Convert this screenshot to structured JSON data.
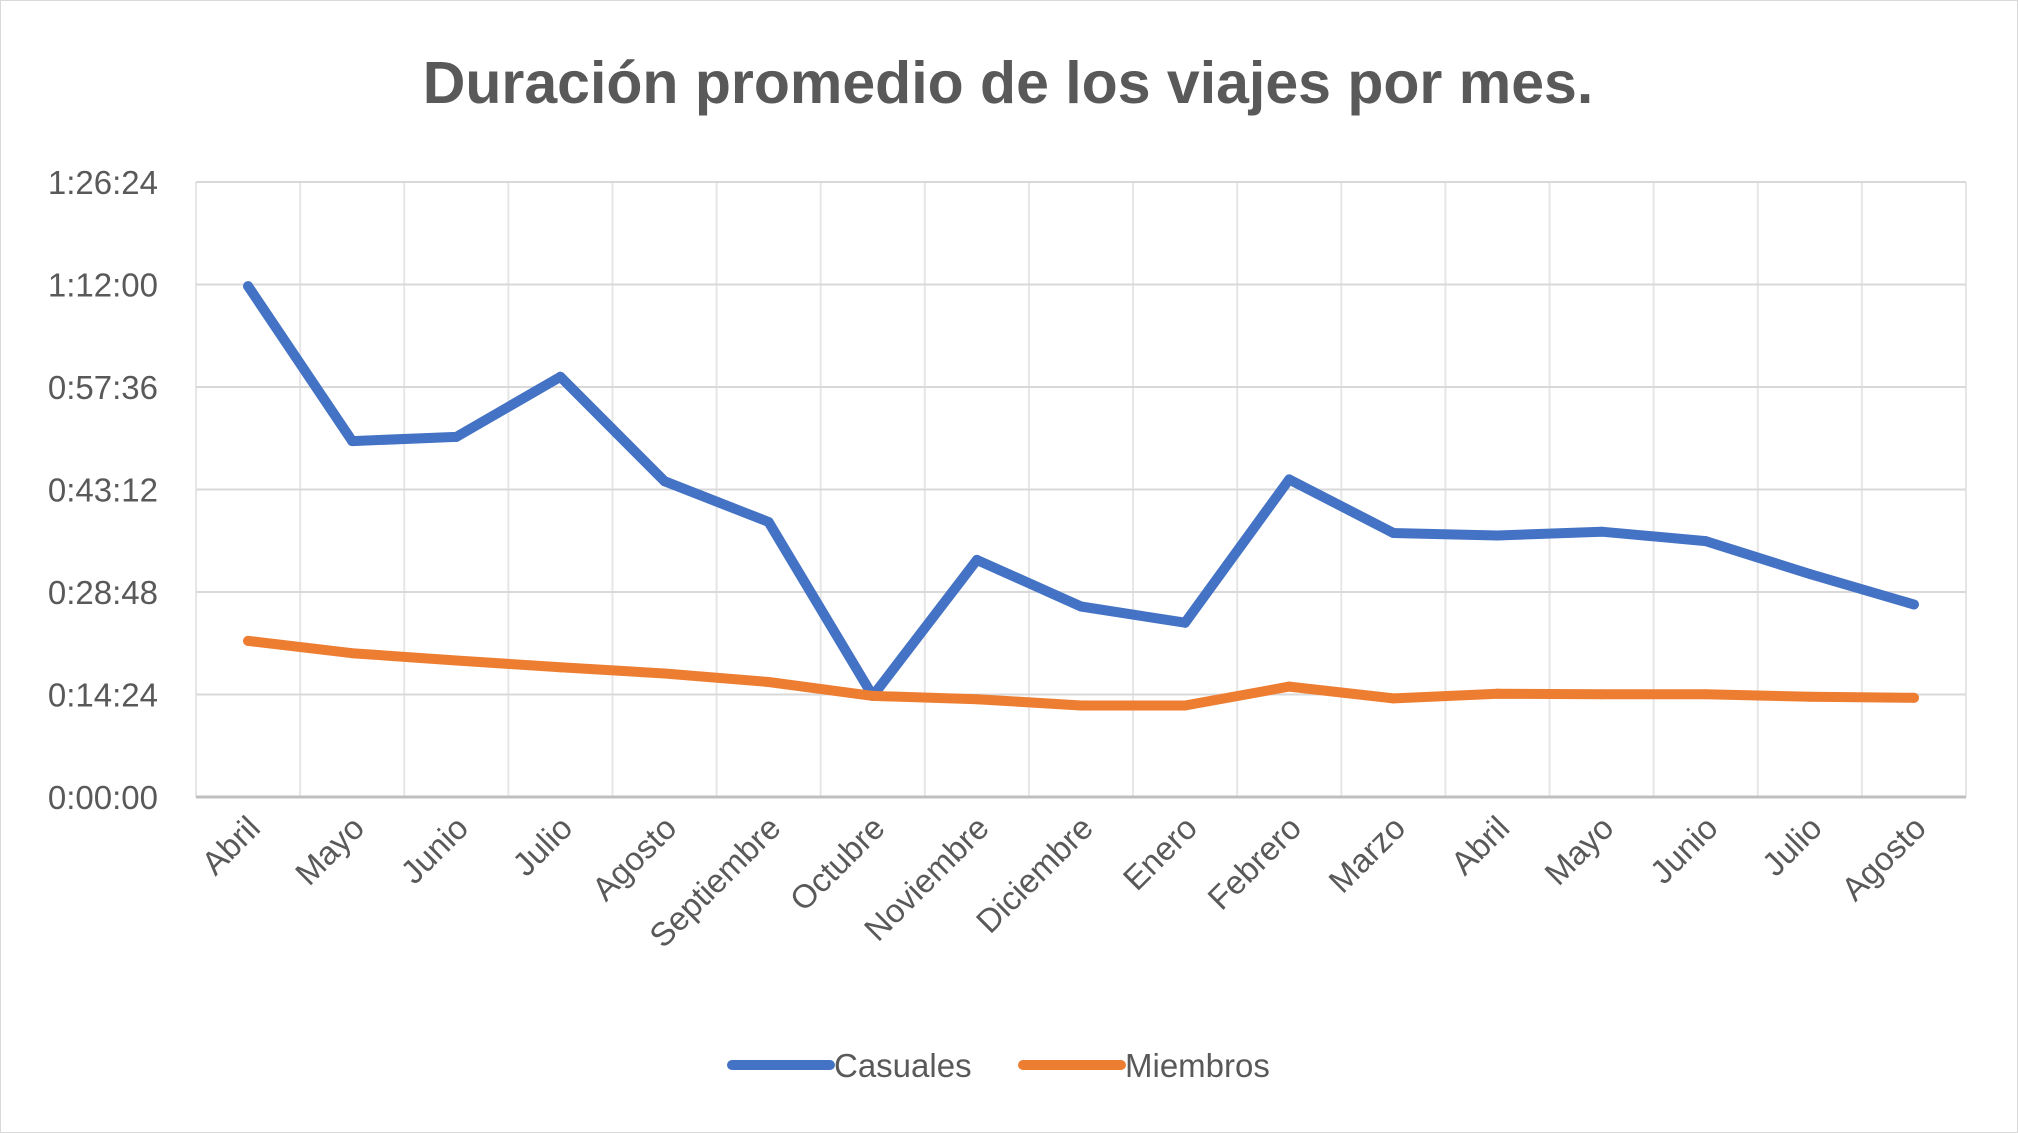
{
  "chart_data": {
    "type": "line",
    "title": "Duración promedio de los viajes por mes.",
    "xlabel": "",
    "ylabel": "",
    "categories": [
      "Abril",
      "Mayo",
      "Junio",
      "Julio",
      "Agosto",
      "Septiembre",
      "Octubre",
      "Noviembre",
      "Diciembre",
      "Enero",
      "Febrero",
      "Marzo",
      "Abril",
      "Mayo",
      "Junio",
      "Julio",
      "Agosto"
    ],
    "y_unit": "h:mm:ss",
    "ylim": [
      "0:00:00",
      "1:26:24"
    ],
    "yticks": [
      "0:00:00",
      "0:14:24",
      "0:28:48",
      "0:43:12",
      "0:57:36",
      "1:12:00",
      "1:26:24"
    ],
    "grid": true,
    "legend_position": "bottom",
    "series": [
      {
        "name": "Casuales",
        "color": "#4472C4",
        "values": [
          "1:11:46",
          "0:50:00",
          "0:50:35",
          "0:59:02",
          "0:44:22",
          "0:38:38",
          "0:14:12",
          "0:33:19",
          "0:26:46",
          "0:24:29",
          "0:44:37",
          "0:37:05",
          "0:36:44",
          "0:37:16",
          "0:35:57",
          "0:31:20",
          "0:27:03"
        ]
      },
      {
        "name": "Miembros",
        "color": "#ED7D31",
        "values": [
          "0:21:56",
          "0:20:12",
          "0:19:11",
          "0:18:13",
          "0:17:21",
          "0:16:09",
          "0:14:12",
          "0:13:44",
          "0:12:51",
          "0:12:51",
          "0:15:31",
          "0:13:51",
          "0:14:31",
          "0:14:26",
          "0:14:26",
          "0:14:05",
          "0:13:56"
        ]
      }
    ]
  }
}
